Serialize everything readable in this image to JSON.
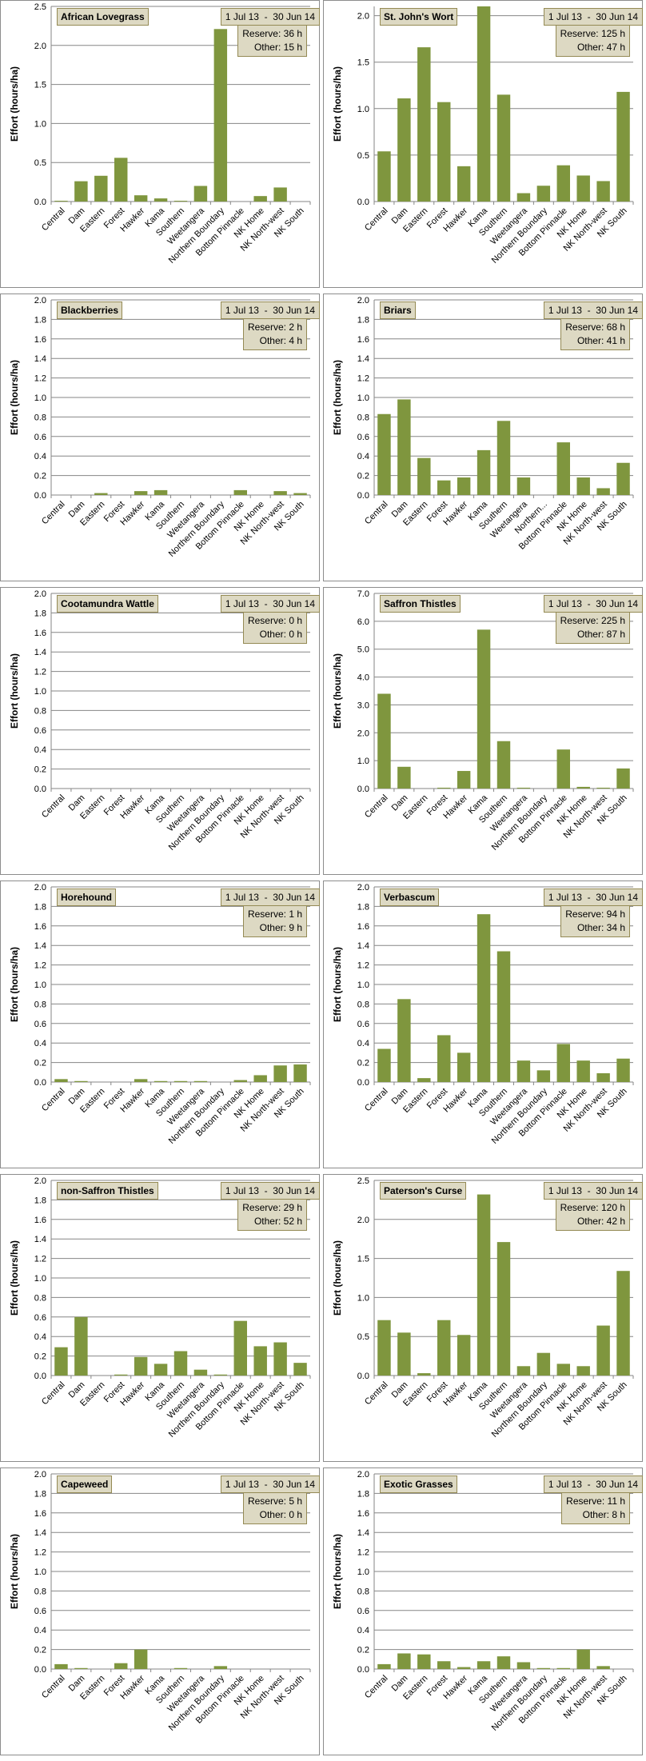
{
  "date_range": "1 Jul 13  -  30 Jun 14",
  "reserve_label": "Reserve:",
  "other_label": "Other:",
  "chart_data": [
    {
      "type": "bar",
      "title": "African Lovegrass",
      "ylabel": "Effort  (hours/ha)",
      "ylim": [
        0,
        2.5
      ],
      "ytick_step": 0.5,
      "reserve": "36 h",
      "other": "15 h",
      "bar_color": "#7f963e",
      "grid": true,
      "categories": [
        "Central",
        "Dam",
        "Eastern",
        "Forest",
        "Hawker",
        "Kama",
        "Southern",
        "Weetangera",
        "Northern Boundary",
        "Bottom Pinnacle",
        "NK Home",
        "NK North-west",
        "NK South"
      ],
      "values": [
        0.01,
        0.26,
        0.33,
        0.56,
        0.08,
        0.04,
        0.01,
        0.2,
        2.21,
        0,
        0.07,
        0.18,
        0
      ]
    },
    {
      "type": "bar",
      "title": "St. John's Wort",
      "ylabel": "Effort  (hours/ha)",
      "ylim": [
        0,
        2.1
      ],
      "ytick_step": 0.5,
      "reserve": "125 h",
      "other": "47 h",
      "bar_color": "#7f963e",
      "grid": true,
      "categories": [
        "Central",
        "Dam",
        "Eastern",
        "Forest",
        "Hawker",
        "Kama",
        "Southern",
        "Weetangera",
        "Northern Boundary",
        "Bottom Pinnacle",
        "NK Home",
        "NK North-west",
        "NK South"
      ],
      "values": [
        0.54,
        1.11,
        1.66,
        1.07,
        0.38,
        2.1,
        1.15,
        0.09,
        0.17,
        0.39,
        0.28,
        0.22,
        1.18
      ]
    },
    {
      "type": "bar",
      "title": "Blackberries",
      "ylabel": "Effort  (hours/ha)",
      "ylim": [
        0,
        2.0
      ],
      "ytick_step": 0.2,
      "reserve": "2 h",
      "other": "4 h",
      "bar_color": "#7f963e",
      "grid": true,
      "categories": [
        "Central",
        "Dam",
        "Eastern",
        "Forest",
        "Hawker",
        "Kama",
        "Southern",
        "Weetangera",
        "Northern Boundary",
        "Bottom Pinnacle",
        "NK Home",
        "NK North-west",
        "NK South"
      ],
      "values": [
        0,
        0,
        0.02,
        0,
        0.04,
        0.05,
        0,
        0,
        0,
        0.05,
        0,
        0.04,
        0.02
      ]
    },
    {
      "type": "bar",
      "title": "Briars",
      "ylabel": "Effort  (hours/ha)",
      "ylim": [
        0,
        2.0
      ],
      "ytick_step": 0.2,
      "reserve": "68 h",
      "other": "41 h",
      "bar_color": "#7f963e",
      "grid": true,
      "categories": [
        "Central",
        "Dam",
        "Eastern",
        "Forest",
        "Hawker",
        "Kama",
        "Southern",
        "Weetangera",
        "Northern...",
        "Bottom Pinnacle",
        "NK Home",
        "NK North-west",
        "NK South"
      ],
      "values": [
        0.83,
        0.98,
        0.38,
        0.15,
        0.18,
        0.46,
        0.76,
        0.18,
        0,
        0.54,
        0.18,
        0.07,
        0.33
      ]
    },
    {
      "type": "bar",
      "title": "Cootamundra Wattle",
      "ylabel": "Effort  (hours/ha)",
      "ylim": [
        0,
        2.0
      ],
      "ytick_step": 0.2,
      "reserve": "0 h",
      "other": "0 h",
      "bar_color": "#7f963e",
      "grid": true,
      "categories": [
        "Central",
        "Dam",
        "Eastern",
        "Forest",
        "Hawker",
        "Kama",
        "Southern",
        "Weetangera",
        "Northern Boundary",
        "Bottom Pinnacle",
        "NK Home",
        "NK North-west",
        "NK South"
      ],
      "values": [
        0,
        0,
        0,
        0,
        0,
        0,
        0,
        0,
        0,
        0,
        0,
        0,
        0
      ]
    },
    {
      "type": "bar",
      "title": "Saffron Thistles",
      "ylabel": "Effort  (hours/ha)",
      "ylim": [
        0,
        7.0
      ],
      "ytick_step": 1.0,
      "reserve": "225 h",
      "other": "87 h",
      "bar_color": "#7f963e",
      "grid": true,
      "categories": [
        "Central",
        "Dam",
        "Eastern",
        "Forest",
        "Hawker",
        "Kama",
        "Southern",
        "Weetangera",
        "Northern Boundary",
        "Bottom Pinnacle",
        "NK Home",
        "NK North-west",
        "NK South"
      ],
      "values": [
        3.4,
        0.78,
        0,
        0.03,
        0.63,
        5.7,
        1.7,
        0.03,
        0,
        1.4,
        0.06,
        0.03,
        0.72
      ]
    },
    {
      "type": "bar",
      "title": "Horehound",
      "ylabel": "Effort  (hours/ha)",
      "ylim": [
        0,
        2.0
      ],
      "ytick_step": 0.2,
      "reserve": "1 h",
      "other": "9 h",
      "bar_color": "#7f963e",
      "grid": true,
      "categories": [
        "Central",
        "Dam",
        "Eastern",
        "Forest",
        "Hawker",
        "Kama",
        "Southern",
        "Weetangera",
        "Northern Boundary",
        "Bottom Pinnacle",
        "NK Home",
        "NK North-west",
        "NK South"
      ],
      "values": [
        0.03,
        0.01,
        0,
        0,
        0.03,
        0.01,
        0.01,
        0.01,
        0,
        0.02,
        0.07,
        0.17,
        0.18
      ]
    },
    {
      "type": "bar",
      "title": "Verbascum",
      "ylabel": "Effort  (hours/ha)",
      "ylim": [
        0,
        2.0
      ],
      "ytick_step": 0.2,
      "reserve": "94 h",
      "other": "34 h",
      "bar_color": "#7f963e",
      "grid": true,
      "categories": [
        "Central",
        "Dam",
        "Eastern",
        "Forest",
        "Hawker",
        "Kama",
        "Southern",
        "Weetangera",
        "Northern Boundary",
        "Bottom Pinnacle",
        "NK Home",
        "NK North-west",
        "NK South"
      ],
      "values": [
        0.34,
        0.85,
        0.04,
        0.48,
        0.3,
        1.72,
        1.34,
        0.22,
        0.12,
        0.39,
        0.22,
        0.09,
        0.24
      ]
    },
    {
      "type": "bar",
      "title": "non-Saffron Thistles",
      "ylabel": "Effort  (hours/ha)",
      "ylim": [
        0,
        2.0
      ],
      "ytick_step": 0.2,
      "reserve": "29 h",
      "other": "52 h",
      "bar_color": "#7f963e",
      "grid": true,
      "categories": [
        "Central",
        "Dam",
        "Eastern",
        "Forest",
        "Hawker",
        "Kama",
        "Southern",
        "Weetangera",
        "Northern Boundary",
        "Bottom Pinnacle",
        "NK Home",
        "NK North-west",
        "NK South"
      ],
      "values": [
        0.29,
        0.6,
        0,
        0.01,
        0.19,
        0.12,
        0.25,
        0.06,
        0.01,
        0.56,
        0.3,
        0.34,
        0.13
      ]
    },
    {
      "type": "bar",
      "title": "Paterson's Curse",
      "ylabel": "Effort  (hours/ha)",
      "ylim": [
        0,
        2.5
      ],
      "ytick_step": 0.5,
      "reserve": "120 h",
      "other": "42 h",
      "bar_color": "#7f963e",
      "grid": true,
      "categories": [
        "Central",
        "Dam",
        "Eastern",
        "Forest",
        "Hawker",
        "Kama",
        "Southern",
        "Weetangera",
        "Northern Boundary",
        "Bottom Pinnacle",
        "NK Home",
        "NK North-west",
        "NK South"
      ],
      "values": [
        0.71,
        0.55,
        0.03,
        0.71,
        0.52,
        2.32,
        1.71,
        0.12,
        0.29,
        0.15,
        0.12,
        0.64,
        1.34
      ]
    },
    {
      "type": "bar",
      "title": "Capeweed",
      "ylabel": "Effort  (hours/ha)",
      "ylim": [
        0,
        2.0
      ],
      "ytick_step": 0.2,
      "reserve": "5 h",
      "other": "0 h",
      "bar_color": "#7f963e",
      "grid": true,
      "categories": [
        "Central",
        "Dam",
        "Eastern",
        "Forest",
        "Hawker",
        "Kama",
        "Southern",
        "Weetangera",
        "Northern Boundary",
        "Bottom Pinnacle",
        "NK Home",
        "NK North-west",
        "NK South"
      ],
      "values": [
        0.05,
        0.01,
        0,
        0.06,
        0.2,
        0,
        0.01,
        0,
        0.03,
        0,
        0,
        0,
        0
      ]
    },
    {
      "type": "bar",
      "title": "Exotic Grasses",
      "ylabel": "Effort  (hours/ha)",
      "ylim": [
        0,
        2.0
      ],
      "ytick_step": 0.2,
      "reserve": "11 h",
      "other": "8 h",
      "bar_color": "#7f963e",
      "grid": true,
      "categories": [
        "Central",
        "Dam",
        "Eastern",
        "Forest",
        "Hawker",
        "Kama",
        "Southern",
        "Weetangera",
        "Northern Boundary",
        "Bottom Pinnacle",
        "NK Home",
        "NK North-west",
        "NK South"
      ],
      "values": [
        0.05,
        0.16,
        0.15,
        0.08,
        0.02,
        0.08,
        0.13,
        0.07,
        0.01,
        0.01,
        0.2,
        0.03,
        0
      ]
    }
  ]
}
